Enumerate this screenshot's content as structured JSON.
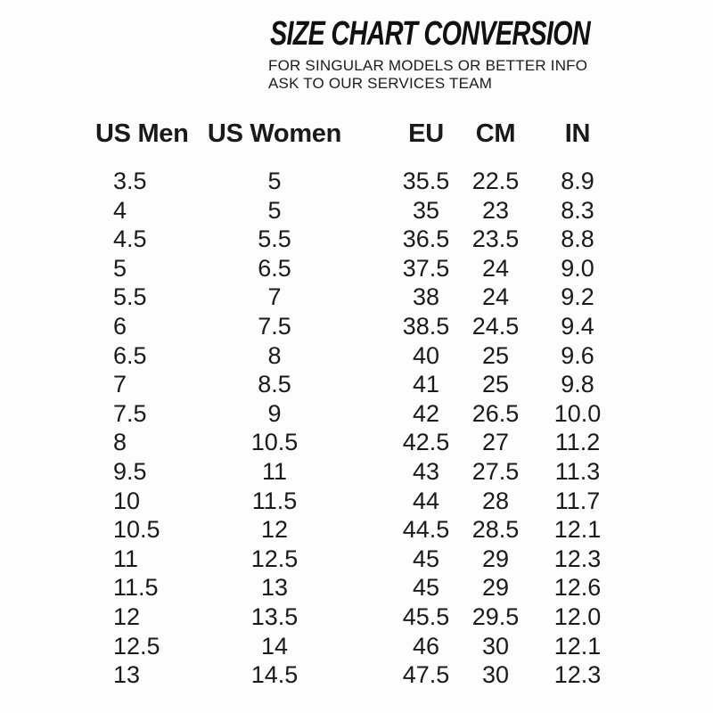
{
  "header": {
    "title": "SIZE CHART CONVERSION",
    "subtitle_line1": "FOR SINGULAR MODELS OR BETTER INFO",
    "subtitle_line2": "ASK TO OUR SERVICES TEAM"
  },
  "chart_data": {
    "type": "table",
    "title": "SIZE CHART CONVERSION",
    "columns": [
      "US Men",
      "US Women",
      "EU",
      "CM",
      "IN"
    ],
    "rows": [
      [
        "3.5",
        "5",
        "35.5",
        "22.5",
        "8.9"
      ],
      [
        "4",
        "5",
        "35",
        "23",
        "8.3"
      ],
      [
        "4.5",
        "5.5",
        "36.5",
        "23.5",
        "8.8"
      ],
      [
        "5",
        "6.5",
        "37.5",
        "24",
        "9.0"
      ],
      [
        "5.5",
        "7",
        "38",
        "24",
        "9.2"
      ],
      [
        "6",
        "7.5",
        "38.5",
        "24.5",
        "9.4"
      ],
      [
        "6.5",
        "8",
        "40",
        "25",
        "9.6"
      ],
      [
        "7",
        "8.5",
        "41",
        "25",
        "9.8"
      ],
      [
        "7.5",
        "9",
        "42",
        "26.5",
        "10.0"
      ],
      [
        "8",
        "10.5",
        "42.5",
        "27",
        "11.2"
      ],
      [
        "9.5",
        "11",
        "43",
        "27.5",
        "11.3"
      ],
      [
        "10",
        "11.5",
        "44",
        "28",
        "11.7"
      ],
      [
        "10.5",
        "12",
        "44.5",
        "28.5",
        "12.1"
      ],
      [
        "11",
        "12.5",
        "45",
        "29",
        "12.3"
      ],
      [
        "11.5",
        "13",
        "45",
        "29",
        "12.6"
      ],
      [
        "12",
        "13.5",
        "45.5",
        "29.5",
        "12.0"
      ],
      [
        "12.5",
        "14",
        "46",
        "30",
        "12.1"
      ],
      [
        "13",
        "14.5",
        "47.5",
        "30",
        "12.3"
      ]
    ],
    "layout": {
      "grid": "off",
      "borders": "none",
      "first_column_align": "left",
      "other_columns_align": "center"
    }
  },
  "colors": {
    "text": "#1a1a1a",
    "background": "#fdfdfd"
  }
}
